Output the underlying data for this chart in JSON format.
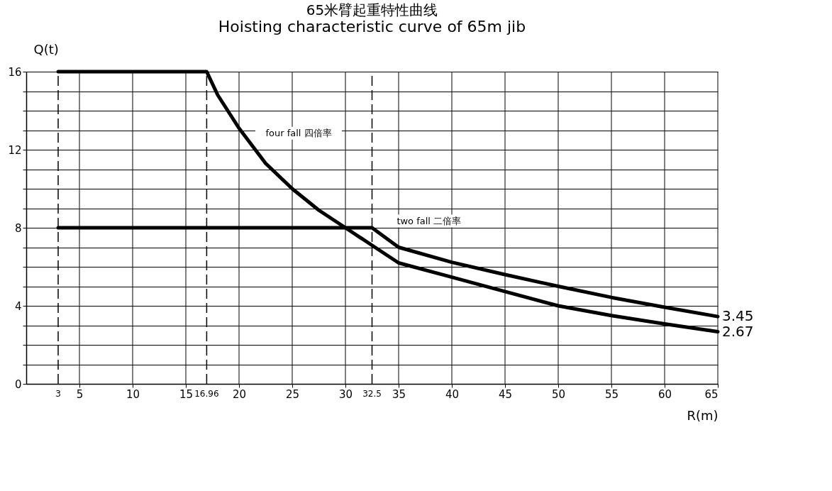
{
  "chart_data": {
    "type": "line",
    "title": "65米臂起重特性曲线",
    "subtitle": "Hoisting characteristic curve of 65m jib",
    "xlabel": "R(m)",
    "ylabel": "Q(t)",
    "xlim": [
      0,
      65
    ],
    "ylim": [
      0,
      16
    ],
    "xticks": [
      5,
      10,
      15,
      20,
      25,
      30,
      35,
      40,
      45,
      50,
      55,
      60,
      65
    ],
    "yticks": [
      0,
      {
        "value": 1,
        "label": null
      },
      {
        "value": 2,
        "label": null
      },
      {
        "value": 3,
        "label": null
      },
      4,
      {
        "value": 5,
        "label": null
      },
      {
        "value": 6,
        "label": null
      },
      {
        "value": 7,
        "label": null
      },
      8,
      {
        "value": 9,
        "label": null
      },
      {
        "value": 10,
        "label": null
      },
      {
        "value": 11,
        "label": null
      },
      12,
      {
        "value": 13,
        "label": null
      },
      {
        "value": 14,
        "label": null
      },
      {
        "value": 15,
        "label": null
      },
      16
    ],
    "grid": true,
    "marker": "none",
    "line_style": "solid",
    "series": [
      {
        "color": "#000000",
        "x": [
          3,
          16.96,
          18,
          20,
          22.5,
          25,
          27.5,
          30,
          32.5,
          35,
          40,
          45,
          50,
          55,
          60,
          65
        ],
        "values": [
          16,
          16,
          14.8,
          13.1,
          11.3,
          10,
          8.9,
          8,
          7.1,
          6.2,
          5.47,
          4.73,
          4,
          3.5,
          3.07,
          2.67
        ],
        "value_labels": [
          null,
          null,
          null,
          null,
          null,
          null,
          null,
          null,
          null,
          null,
          null,
          null,
          null,
          null,
          null,
          "2.67"
        ]
      },
      {
        "color": "#000000",
        "x": [
          3,
          32.5,
          35,
          40,
          45,
          50,
          55,
          60,
          65
        ],
        "values": [
          8,
          8,
          7,
          6.23,
          5.6,
          5,
          4.43,
          3.93,
          3.45
        ],
        "value_labels": [
          null,
          null,
          null,
          null,
          null,
          null,
          null,
          null,
          "3.45"
        ]
      }
    ],
    "ref_lines": [
      {
        "axis": "x",
        "value": 3,
        "label": "3",
        "line_style": "dashed"
      },
      {
        "axis": "x",
        "value": 16.96,
        "label": "16.96",
        "line_style": "dashed"
      },
      {
        "axis": "x",
        "value": 32.5,
        "label": "32.5",
        "line_style": "dashed"
      }
    ],
    "annotations": [
      {
        "text": "four fall 四倍率",
        "x": 21,
        "y": 12.3
      },
      {
        "text": "two fall 二倍率",
        "x": 33.5,
        "y": 7.8
      }
    ]
  }
}
